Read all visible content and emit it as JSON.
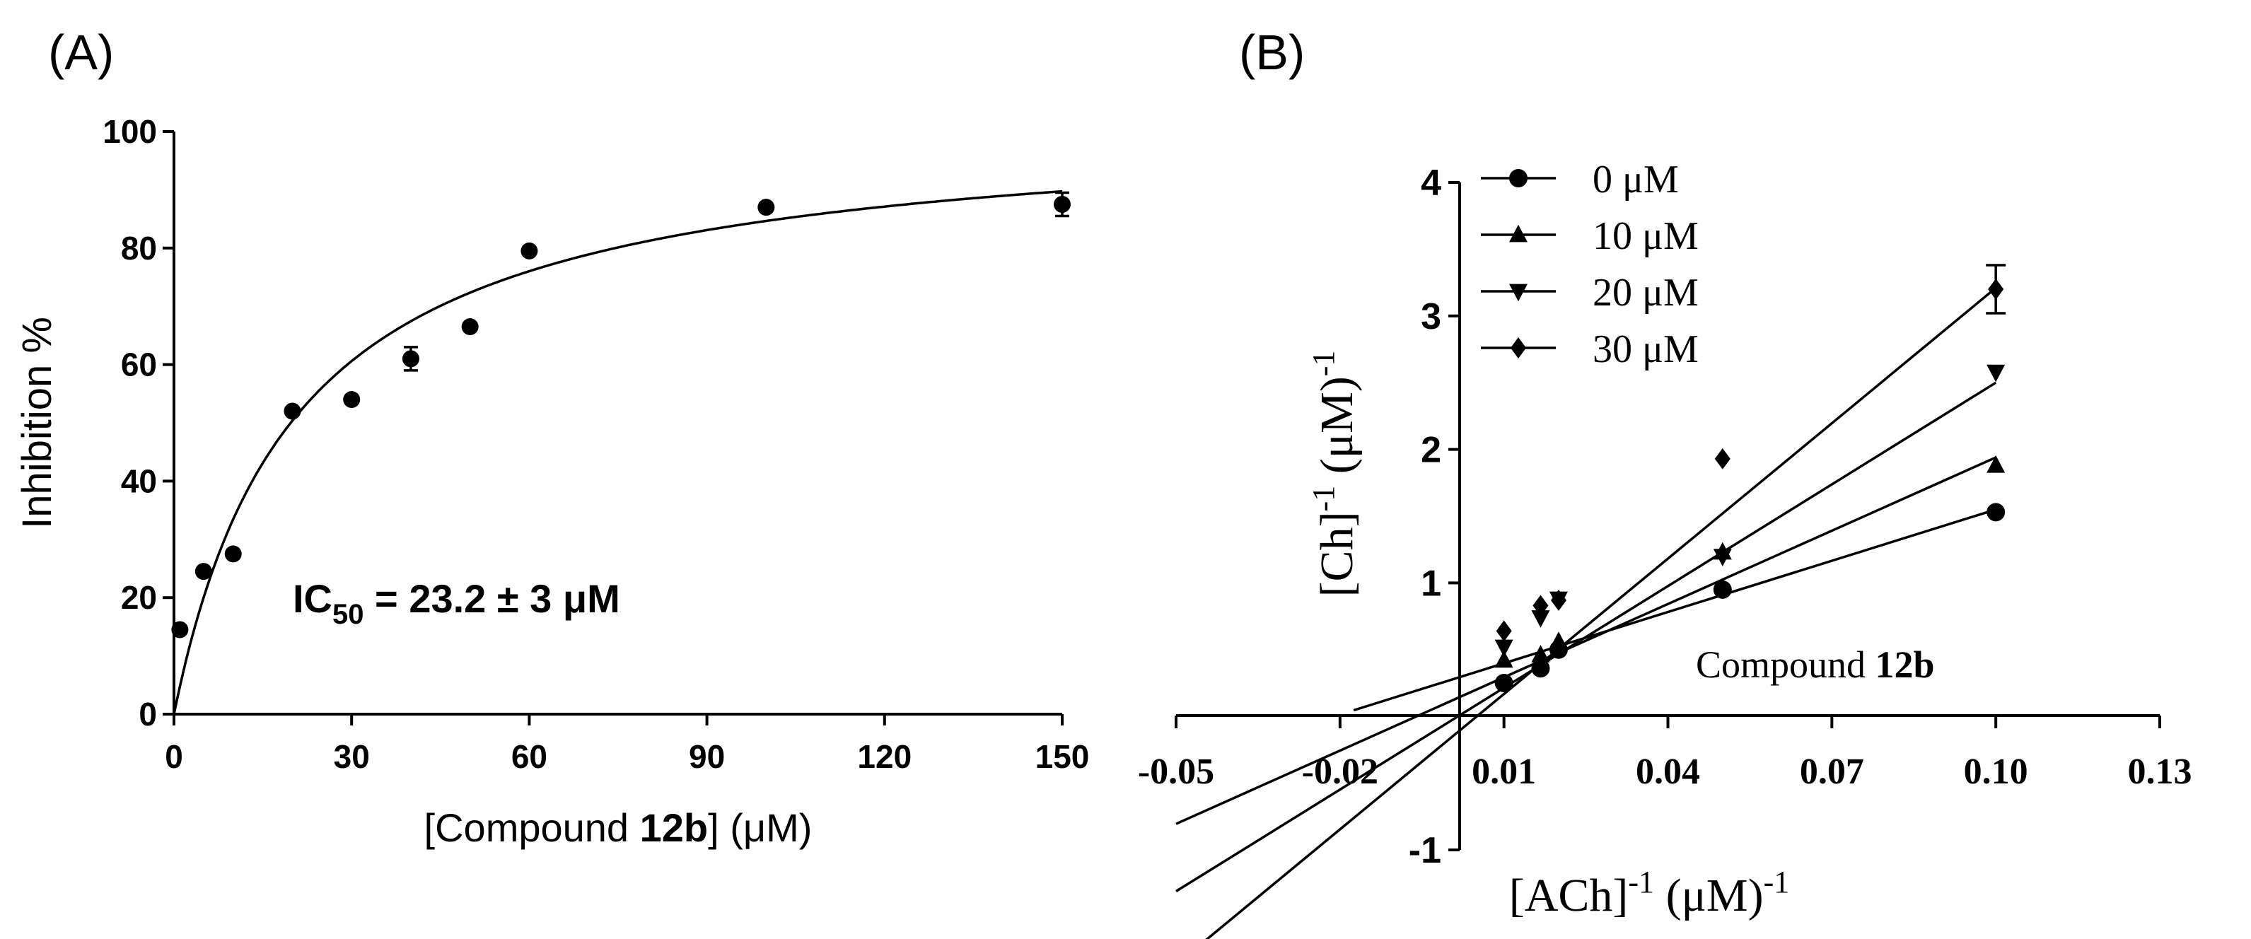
{
  "chart_data": [
    {
      "panel": "(A)",
      "type": "scatter",
      "xlabel": {
        "pre": "[Compound ",
        "bold": "12b",
        "post": "] (μM)"
      },
      "ylabel": "Inhibition %",
      "xlim": [
        0,
        150
      ],
      "ylim": [
        0,
        100
      ],
      "xticks": [
        0,
        30,
        60,
        90,
        120,
        150
      ],
      "yticks": [
        0,
        20,
        40,
        60,
        80,
        100
      ],
      "points": [
        {
          "x": 1,
          "y": 14.5,
          "err": 0
        },
        {
          "x": 5,
          "y": 24.5,
          "err": 0
        },
        {
          "x": 10,
          "y": 27.5,
          "err": 0
        },
        {
          "x": 20,
          "y": 52,
          "err": 0
        },
        {
          "x": 30,
          "y": 54,
          "err": 0
        },
        {
          "x": 40,
          "y": 61,
          "err": 2
        },
        {
          "x": 50,
          "y": 66.5,
          "err": 0
        },
        {
          "x": 60,
          "y": 79.5,
          "err": 0
        },
        {
          "x": 100,
          "y": 87,
          "err": 0
        },
        {
          "x": 150,
          "y": 87.5,
          "err": 2
        }
      ],
      "fit": {
        "model": "hyperbolic",
        "top": 102,
        "half_conc": 20.5
      },
      "annotation": {
        "pre": "IC",
        "sub": "50",
        "post": " = 23.2 ± 3 μM"
      }
    },
    {
      "panel": "(B)",
      "type": "line",
      "xlabel": {
        "pre": "[ACh]",
        "sup": "-1",
        "mid": " (μM)",
        "sup2": "-1"
      },
      "ylabel": {
        "pre": "[Ch]",
        "sup": "-1",
        "mid": " (μM)",
        "sup2": "-1"
      },
      "xlim": [
        -0.05,
        0.13
      ],
      "ylim": [
        -1,
        4
      ],
      "xticks": [
        -0.05,
        -0.02,
        0.01,
        0.04,
        0.07,
        0.1,
        0.13
      ],
      "xtick_labels": [
        "-0.05",
        "-0.02",
        "0.01",
        "0.04",
        "0.07",
        "0.10",
        "0.13"
      ],
      "yticks": [
        -1,
        1,
        2,
        3,
        4
      ],
      "annotation": {
        "pre": "Compound ",
        "bold": "12b"
      },
      "series": [
        {
          "name": "0 μM",
          "marker": "circle",
          "points": [
            [
              0.01,
              0.25
            ],
            [
              0.0167,
              0.36
            ],
            [
              0.02,
              0.5
            ],
            [
              0.05,
              0.95
            ],
            [
              0.1,
              1.53
            ]
          ],
          "line": {
            "slope": 12.8,
            "intercept": 0.27,
            "x_range": [
              -0.0175,
              0.1
            ]
          }
        },
        {
          "name": "10 μM",
          "marker": "triangle",
          "points": [
            [
              0.01,
              0.42
            ],
            [
              0.0167,
              0.46
            ],
            [
              0.02,
              0.56
            ],
            [
              0.05,
              1.23
            ],
            [
              0.1,
              1.88
            ]
          ],
          "line": {
            "slope": 18.3,
            "intercept": 0.11,
            "x_range": [
              -0.05,
              0.1
            ]
          }
        },
        {
          "name": "20 μM",
          "marker": "triangle-down",
          "points": [
            [
              0.01,
              0.52
            ],
            [
              0.0167,
              0.74
            ],
            [
              0.02,
              0.88
            ],
            [
              0.05,
              1.2
            ],
            [
              0.1,
              2.58
            ]
          ],
          "line": {
            "slope": 25.4,
            "intercept": -0.04,
            "x_range": [
              -0.05,
              0.1
            ]
          }
        },
        {
          "name": "30 μM",
          "marker": "diamond",
          "points": [
            [
              0.01,
              0.64
            ],
            [
              0.0167,
              0.83
            ],
            [
              0.02,
              0.87
            ],
            [
              0.05,
              1.93
            ],
            [
              0.1,
              3.2
            ]
          ],
          "errors": [
            0,
            0,
            0,
            0,
            0.18
          ],
          "line": {
            "slope": 33.8,
            "intercept": -0.17,
            "x_range": [
              -0.045,
              0.1
            ]
          }
        }
      ]
    }
  ]
}
